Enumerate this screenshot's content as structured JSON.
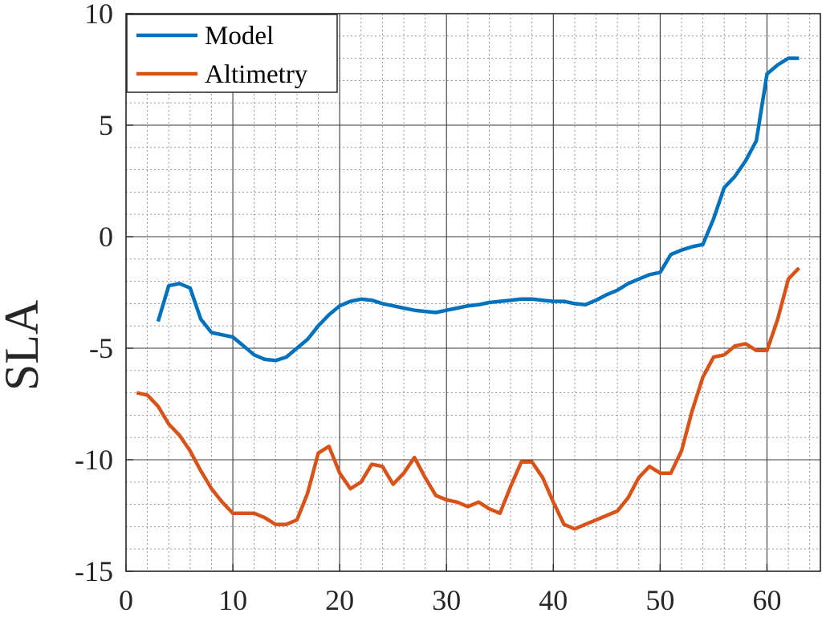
{
  "chart_data": {
    "type": "line",
    "title": "",
    "xlabel": "",
    "ylabel": "SLA",
    "xlim": [
      0,
      65
    ],
    "ylim": [
      -15,
      10
    ],
    "xticks": [
      0,
      10,
      20,
      30,
      40,
      50,
      60
    ],
    "yticks": [
      -15,
      -10,
      -5,
      0,
      5,
      10
    ],
    "xtick_labels": [
      "0",
      "10",
      "20",
      "30",
      "40",
      "50",
      "60"
    ],
    "ytick_labels": [
      "-15",
      "-10",
      "-5",
      "0",
      "5",
      "10"
    ],
    "grid": true,
    "minor_grid": true,
    "legend_position": "top-left",
    "series": [
      {
        "name": "Model",
        "color": "#0072BD",
        "x": [
          3,
          4,
          5,
          6,
          7,
          8,
          9,
          10,
          11,
          12,
          13,
          14,
          15,
          16,
          17,
          18,
          19,
          20,
          21,
          22,
          23,
          24,
          25,
          26,
          27,
          28,
          29,
          30,
          31,
          32,
          33,
          34,
          35,
          36,
          37,
          38,
          39,
          40,
          41,
          42,
          43,
          44,
          45,
          46,
          47,
          48,
          49,
          50,
          51,
          52,
          53,
          54,
          55,
          56,
          57,
          58,
          59,
          60,
          61,
          62,
          63
        ],
        "y": [
          -3.8,
          -2.2,
          -2.1,
          -2.3,
          -3.7,
          -4.3,
          -4.4,
          -4.5,
          -4.9,
          -5.3,
          -5.5,
          -5.55,
          -5.4,
          -5.0,
          -4.6,
          -4.0,
          -3.5,
          -3.1,
          -2.9,
          -2.8,
          -2.85,
          -3.0,
          -3.1,
          -3.2,
          -3.3,
          -3.35,
          -3.4,
          -3.3,
          -3.2,
          -3.1,
          -3.05,
          -2.95,
          -2.9,
          -2.85,
          -2.8,
          -2.8,
          -2.85,
          -2.9,
          -2.9,
          -3.0,
          -3.05,
          -2.85,
          -2.6,
          -2.4,
          -2.1,
          -1.9,
          -1.7,
          -1.6,
          -0.8,
          -0.6,
          -0.45,
          -0.35,
          0.8,
          2.2,
          2.7,
          3.4,
          4.3,
          7.3,
          7.7,
          8.0,
          8.0
        ]
      },
      {
        "name": "Altimetry",
        "color": "#D95319",
        "x": [
          1,
          2,
          3,
          4,
          5,
          6,
          7,
          8,
          9,
          10,
          11,
          12,
          13,
          14,
          15,
          16,
          17,
          18,
          19,
          20,
          21,
          22,
          23,
          24,
          25,
          26,
          27,
          28,
          29,
          30,
          31,
          32,
          33,
          34,
          35,
          36,
          37,
          38,
          39,
          40,
          41,
          42,
          43,
          44,
          45,
          46,
          47,
          48,
          49,
          50,
          51,
          52,
          53,
          54,
          55,
          56,
          57,
          58,
          59,
          60,
          61,
          62,
          63
        ],
        "y": [
          -7.0,
          -7.1,
          -7.6,
          -8.4,
          -8.9,
          -9.6,
          -10.5,
          -11.3,
          -11.9,
          -12.4,
          -12.4,
          -12.4,
          -12.6,
          -12.9,
          -12.9,
          -12.7,
          -11.5,
          -9.7,
          -9.4,
          -10.6,
          -11.3,
          -11.0,
          -10.2,
          -10.3,
          -11.1,
          -10.6,
          -9.9,
          -10.8,
          -11.6,
          -11.8,
          -11.9,
          -12.1,
          -11.9,
          -12.2,
          -12.4,
          -11.2,
          -10.1,
          -10.1,
          -10.8,
          -11.9,
          -12.9,
          -13.1,
          -12.9,
          -12.7,
          -12.5,
          -12.3,
          -11.7,
          -10.8,
          -10.3,
          -10.6,
          -10.6,
          -9.6,
          -7.8,
          -6.3,
          -5.4,
          -5.3,
          -4.9,
          -4.8,
          -5.1,
          -5.1,
          -3.7,
          -1.9,
          -1.4
        ]
      }
    ]
  }
}
